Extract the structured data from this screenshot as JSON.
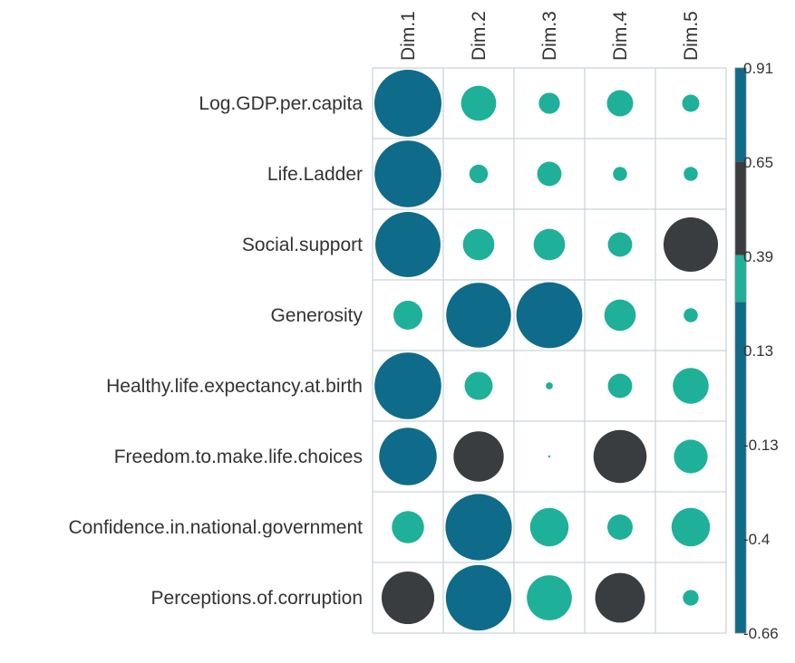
{
  "chart_data": {
    "type": "heatmap",
    "title": "",
    "columns": [
      "Dim.1",
      "Dim.2",
      "Dim.3",
      "Dim.4",
      "Dim.5"
    ],
    "rows": [
      "Log.GDP.per.capita",
      "Life.Ladder",
      "Social.support",
      "Generosity",
      "Healthy.life.expectancy.at.birth",
      "Freedom.to.make.life.choices",
      "Confidence.in.national.government",
      "Perceptions.of.corruption"
    ],
    "values": [
      [
        0.91,
        0.25,
        0.09,
        0.14,
        0.06
      ],
      [
        0.9,
        0.07,
        0.12,
        0.04,
        0.04
      ],
      [
        0.86,
        0.2,
        0.2,
        0.12,
        0.6
      ],
      [
        0.17,
        0.85,
        0.88,
        0.2,
        0.04
      ],
      [
        0.9,
        0.16,
        0.01,
        0.12,
        0.26
      ],
      [
        0.67,
        0.51,
        0.0,
        0.57,
        0.23
      ],
      [
        0.21,
        0.89,
        0.3,
        0.13,
        0.3
      ],
      [
        0.56,
        0.87,
        0.41,
        0.5,
        0.05
      ]
    ],
    "colorbar": {
      "ticks": [
        "0.91",
        "0.65",
        "0.39",
        "0.13",
        "-0.13",
        "-0.4",
        "-0.66"
      ],
      "range": [
        -0.66,
        0.91
      ],
      "bands": [
        {
          "from": -0.66,
          "to": 0.26,
          "color": "#0f6b8a"
        },
        {
          "from": 0.26,
          "to": 0.39,
          "color": "#1fb09a"
        },
        {
          "from": 0.39,
          "to": 0.65,
          "color": "#3a3d3f"
        },
        {
          "from": 0.65,
          "to": 0.91,
          "color": "#0f6b8a"
        }
      ]
    },
    "colors": {
      "teal": "#1fb09a",
      "blue": "#0f6b8a",
      "dark": "#3a3d3f",
      "grid": "#c9d3d7"
    },
    "legend_position": "right",
    "grid": true
  }
}
